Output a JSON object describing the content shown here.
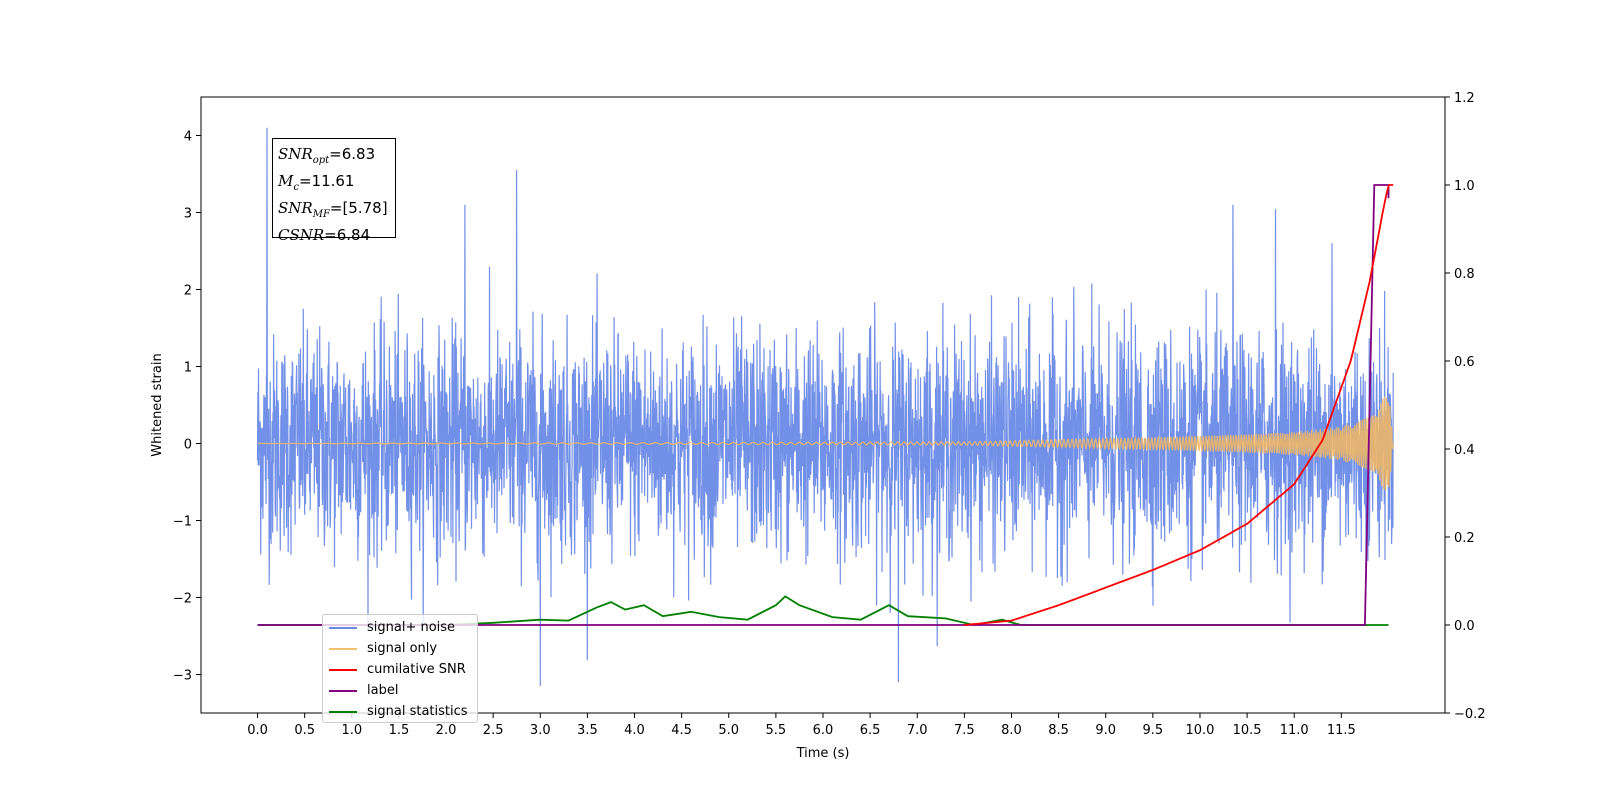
{
  "chart_data": {
    "type": "line",
    "xlabel": "Time (s)",
    "ylabel": "Whitened strain",
    "xlim": [
      -0.6,
      12.6
    ],
    "ylim": [
      -3.5,
      4.5
    ],
    "y2lim": [
      -0.2,
      1.2
    ],
    "x_ticks": [
      "0.0",
      "0.5",
      "1.0",
      "1.5",
      "2.0",
      "2.5",
      "3.0",
      "3.5",
      "4.0",
      "4.5",
      "5.0",
      "5.5",
      "6.0",
      "6.5",
      "7.0",
      "7.5",
      "8.0",
      "8.5",
      "9.0",
      "9.5",
      "10.0",
      "10.5",
      "11.0",
      "11.5"
    ],
    "y_ticks": [
      "−3",
      "−2",
      "−1",
      "0",
      "1",
      "2",
      "3",
      "4"
    ],
    "y2_ticks": [
      "−0.2",
      "0.0",
      "0.2",
      "0.4",
      "0.6",
      "0.8",
      "1.0",
      "1.2"
    ],
    "grid": false,
    "legend_placement": "lower-left",
    "series": [
      {
        "name": "signal+ noise",
        "color": "#6a8ae6",
        "axis": "left",
        "noise_std": 0.7,
        "x_range": [
          0.0,
          12.05
        ],
        "x": [
          0.1,
          2.75,
          2.2,
          6.8,
          3.0,
          10.35,
          10.8,
          11.4
        ],
        "y": [
          4.1,
          3.55,
          3.1,
          -3.1,
          -3.15,
          3.1,
          3.05,
          2.6
        ]
      },
      {
        "name": "signal only",
        "color": "#f5b860",
        "axis": "left",
        "x": [
          0.0,
          7.5,
          8.5,
          9.5,
          10.5,
          11.0,
          11.5,
          11.8,
          11.95,
          12.0,
          12.05
        ],
        "amplitude": [
          0.0,
          0.02,
          0.05,
          0.08,
          0.12,
          0.15,
          0.22,
          0.35,
          0.6,
          0.75,
          0.0
        ]
      },
      {
        "name": "cumilative SNR",
        "color": "#ff0000",
        "axis": "right",
        "x": [
          7.5,
          8.0,
          8.5,
          9.0,
          9.5,
          10.0,
          10.5,
          11.0,
          11.3,
          11.6,
          11.8,
          11.95,
          12.0,
          12.05
        ],
        "y": [
          0.0,
          0.01,
          0.045,
          0.085,
          0.125,
          0.17,
          0.23,
          0.32,
          0.42,
          0.6,
          0.78,
          0.95,
          1.0,
          1.0
        ]
      },
      {
        "name": "label",
        "color": "#800080",
        "axis": "right",
        "x": [
          0.0,
          11.75,
          11.85,
          11.85,
          12.0,
          12.0
        ],
        "y": [
          0.0,
          0.0,
          1.0,
          1.0,
          1.0,
          0.97
        ]
      },
      {
        "name": "signal statistics",
        "color": "#008000",
        "axis": "right",
        "x": [
          0.0,
          2.0,
          2.5,
          3.0,
          3.3,
          3.6,
          3.75,
          3.9,
          4.1,
          4.3,
          4.6,
          4.9,
          5.2,
          5.5,
          5.6,
          5.75,
          6.1,
          6.4,
          6.7,
          6.9,
          7.3,
          7.6,
          7.9,
          8.1,
          8.2,
          12.0
        ],
        "y": [
          0.0,
          0.0,
          0.005,
          0.012,
          0.01,
          0.04,
          0.052,
          0.035,
          0.045,
          0.02,
          0.03,
          0.018,
          0.012,
          0.045,
          0.065,
          0.045,
          0.018,
          0.012,
          0.045,
          0.02,
          0.015,
          0.0,
          0.012,
          0.0,
          0.0,
          0.0
        ]
      }
    ],
    "annotations": {
      "snr_opt": {
        "symbol": "SNR",
        "subscript": "opt",
        "value": "=6.83"
      },
      "mc": {
        "symbol": "M",
        "subscript": "c",
        "value": "=11.61"
      },
      "snr_mf": {
        "symbol": "SNR",
        "subscript": "MF",
        "value": "=[5.78]"
      },
      "csnr": {
        "symbol": "CSNR",
        "subscript": "",
        "value": "=6.84"
      }
    }
  }
}
